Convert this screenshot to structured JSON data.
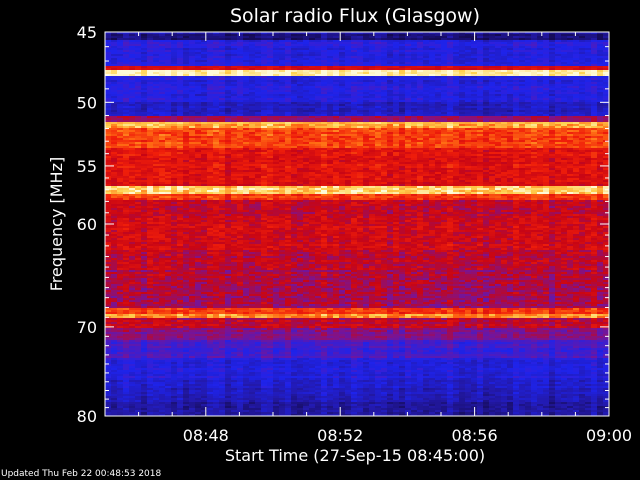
{
  "chart_data": {
    "type": "heatmap",
    "title": "Solar radio Flux (Glasgow)",
    "xlabel": "Start Time (27-Sep-15 08:45:00)",
    "ylabel": "Frequency [MHz]",
    "xlim": [
      "08:45",
      "09:00"
    ],
    "ylim": [
      45,
      80
    ],
    "x_ticks": [
      "08:48",
      "08:52",
      "08:56",
      "09:00"
    ],
    "y_ticks": [
      45,
      50,
      55,
      60,
      70,
      80
    ],
    "colors": {
      "background": "#000000",
      "low": "#2a0f8c",
      "mid": "#d80a10",
      "high": "#fff4b0"
    }
  },
  "footer_text": "Updated Thu Feb 22 00:48:53 2018"
}
